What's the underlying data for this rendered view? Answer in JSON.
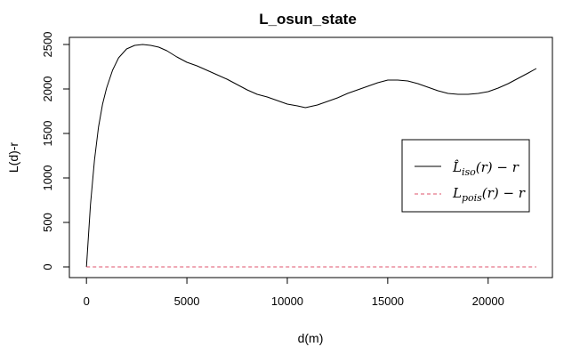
{
  "chart_data": {
    "type": "line",
    "title": "L_osun_state",
    "xlabel": "d(m)",
    "ylabel": "L(d)-r",
    "xlim": [
      -850,
      23200
    ],
    "ylim": [
      -120,
      2580
    ],
    "xticks": [
      0,
      5000,
      10000,
      15000,
      20000
    ],
    "xtick_labels": [
      "0",
      "5000",
      "10000",
      "15000",
      "20000"
    ],
    "yticks": [
      0,
      500,
      1000,
      1500,
      2000,
      2500
    ],
    "ytick_labels": [
      "0",
      "500",
      "1000",
      "1500",
      "2000",
      "2500"
    ],
    "grid": false,
    "legend_position": "right",
    "series": [
      {
        "name": "L̂iso(r) − r",
        "legend_main": "L̂",
        "legend_sub": "iso",
        "legend_tail": "(r) − r",
        "color": "#000000",
        "dash": "solid",
        "x": [
          0,
          200,
          400,
          600,
          800,
          1000,
          1300,
          1600,
          2000,
          2400,
          2800,
          3200,
          3600,
          4000,
          4500,
          5000,
          5500,
          6000,
          6500,
          7000,
          7500,
          8000,
          8500,
          9000,
          9500,
          10000,
          10500,
          10900,
          11500,
          12000,
          12500,
          13000,
          13500,
          14000,
          14500,
          15000,
          15500,
          16000,
          16500,
          17000,
          17500,
          18000,
          18500,
          19000,
          19500,
          20000,
          20500,
          21000,
          21500,
          22000,
          22400
        ],
        "y": [
          0,
          700,
          1200,
          1570,
          1830,
          2010,
          2210,
          2350,
          2450,
          2490,
          2500,
          2490,
          2470,
          2430,
          2360,
          2300,
          2260,
          2210,
          2160,
          2110,
          2050,
          1990,
          1940,
          1910,
          1870,
          1830,
          1810,
          1790,
          1820,
          1860,
          1900,
          1950,
          1990,
          2030,
          2070,
          2100,
          2100,
          2090,
          2060,
          2020,
          1980,
          1950,
          1940,
          1940,
          1950,
          1970,
          2010,
          2060,
          2120,
          2180,
          2230
        ]
      },
      {
        "name": "Lpois(r) − r",
        "legend_main": "L",
        "legend_sub": "pois",
        "legend_tail": "(r) − r",
        "color": "#df536b",
        "dash": "dashed",
        "x": [
          0,
          22400
        ],
        "y": [
          0,
          0
        ]
      }
    ]
  }
}
